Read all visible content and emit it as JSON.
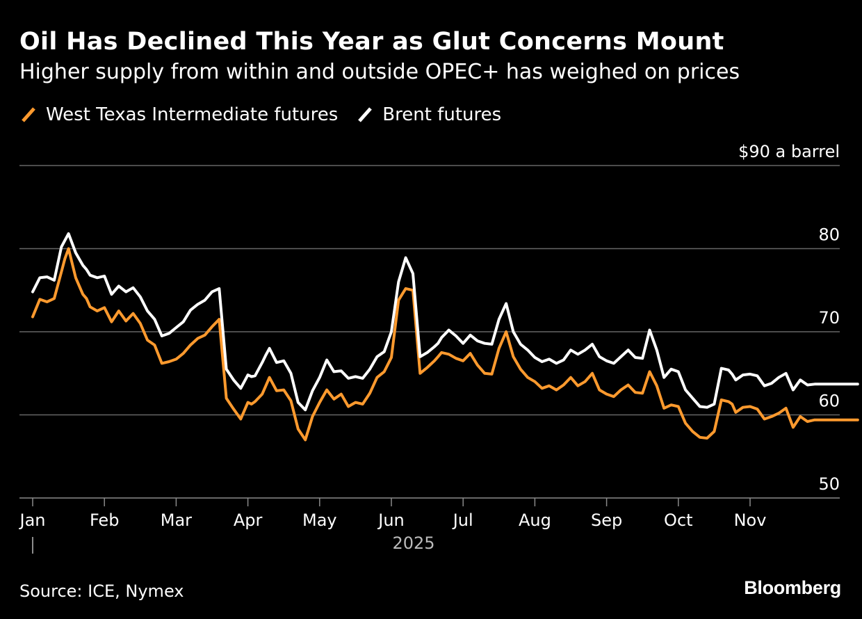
{
  "title": "Oil Has Declined This Year as Glut Concerns Mount",
  "subtitle": "Higher supply from within and outside OPEC+ has weighed on prices",
  "source": "Source: ICE, Nymex",
  "brand": "Bloomberg",
  "colors": {
    "background": "#000000",
    "wti": "#ff9a2e",
    "brent": "#ffffff",
    "grid": "#666666",
    "axis_text": "#ffffff",
    "year_text": "#bbbbbb"
  },
  "chart_data": {
    "type": "line",
    "title": "Oil Has Declined This Year as Glut Concerns Mount",
    "subtitle": "Higher supply from within and outside OPEC+ has weighed on prices",
    "xlabel": "2025",
    "ylabel": "$ a barrel",
    "ylim": [
      50,
      90
    ],
    "y_ticks": [
      50,
      60,
      70,
      80,
      90
    ],
    "y_tick_labels": [
      "50",
      "60",
      "70",
      "80",
      "$90 a barrel"
    ],
    "x_range": [
      0,
      11.6
    ],
    "months": [
      "Jan",
      "Feb",
      "Mar",
      "Apr",
      "May",
      "Jun",
      "Jul",
      "Aug",
      "Sep",
      "Oct",
      "Nov"
    ],
    "year_label": "2025",
    "legend": [
      "West Texas Intermediate futures",
      "Brent futures"
    ],
    "legend_position": "top-left",
    "grid": true,
    "series": [
      {
        "name": "West Texas Intermediate futures",
        "color": "#ff9a2e",
        "x": [
          0,
          0.1,
          0.2,
          0.3,
          0.4,
          0.45,
          0.5,
          0.6,
          0.7,
          0.75,
          0.8,
          0.9,
          1.0,
          1.1,
          1.2,
          1.3,
          1.4,
          1.5,
          1.6,
          1.7,
          1.8,
          1.9,
          2.0,
          2.1,
          2.2,
          2.3,
          2.4,
          2.5,
          2.6,
          2.7,
          2.8,
          2.9,
          3.0,
          3.05,
          3.1,
          3.2,
          3.25,
          3.3,
          3.4,
          3.5,
          3.6,
          3.7,
          3.8,
          3.9,
          4.0,
          4.1,
          4.2,
          4.3,
          4.4,
          4.5,
          4.6,
          4.7,
          4.8,
          4.9,
          5.0,
          5.1,
          5.2,
          5.3,
          5.4,
          5.5,
          5.6,
          5.65,
          5.7,
          5.8,
          5.9,
          6.0,
          6.1,
          6.2,
          6.3,
          6.4,
          6.5,
          6.6,
          6.7,
          6.8,
          6.9,
          7.0,
          7.1,
          7.2,
          7.3,
          7.4,
          7.5,
          7.6,
          7.7,
          7.8,
          7.9,
          8.0,
          8.1,
          8.2,
          8.3,
          8.4,
          8.5,
          8.6,
          8.7,
          8.8,
          8.9,
          9.0,
          9.1,
          9.2,
          9.3,
          9.4,
          9.5,
          9.6,
          9.7,
          9.75,
          9.8,
          9.9,
          10.0,
          10.1,
          10.2,
          10.3,
          10.4,
          10.5,
          10.6,
          10.7,
          10.8,
          10.9,
          11.0,
          11.1,
          11.2,
          11.3,
          11.4,
          11.5
        ],
        "values": [
          71.8,
          73.9,
          73.6,
          74.0,
          77.2,
          78.8,
          80.0,
          76.5,
          74.5,
          74.0,
          73.0,
          72.5,
          72.9,
          71.2,
          72.5,
          71.3,
          72.2,
          71.0,
          69.0,
          68.4,
          66.2,
          66.4,
          66.7,
          67.4,
          68.4,
          69.2,
          69.6,
          70.6,
          71.5,
          62.0,
          60.7,
          59.5,
          61.5,
          61.3,
          61.6,
          62.5,
          63.5,
          64.5,
          62.9,
          63.0,
          61.7,
          58.3,
          57.0,
          59.8,
          61.5,
          63.0,
          61.9,
          62.5,
          61.0,
          61.5,
          61.3,
          62.6,
          64.5,
          65.2,
          66.9,
          73.8,
          75.2,
          75.0,
          65.0,
          65.7,
          66.5,
          67.0,
          67.5,
          67.3,
          66.8,
          66.5,
          67.4,
          66.0,
          65.0,
          64.9,
          68.0,
          70.0,
          67.0,
          65.5,
          64.5,
          64.0,
          63.2,
          63.5,
          63.0,
          63.6,
          64.5,
          63.5,
          64.0,
          65.0,
          63.0,
          62.5,
          62.2,
          63.0,
          63.6,
          62.7,
          62.6,
          65.2,
          63.5,
          60.8,
          61.2,
          61.0,
          59.0,
          58.0,
          57.3,
          57.2,
          58.0,
          61.8,
          61.6,
          61.3,
          60.3,
          60.9,
          61.0,
          60.7,
          59.5,
          59.8,
          60.2,
          60.8,
          58.5,
          59.8,
          59.2,
          59.4,
          59.4,
          59.4,
          59.4,
          59.4,
          59.4,
          59.4
        ],
        "values_note": "sampled daily closes, approximate"
      },
      {
        "name": "Brent futures",
        "color": "#ffffff",
        "x": [
          0,
          0.1,
          0.2,
          0.3,
          0.4,
          0.45,
          0.5,
          0.6,
          0.7,
          0.75,
          0.8,
          0.9,
          1.0,
          1.1,
          1.2,
          1.3,
          1.4,
          1.5,
          1.6,
          1.7,
          1.8,
          1.9,
          2.0,
          2.1,
          2.2,
          2.3,
          2.4,
          2.5,
          2.6,
          2.7,
          2.8,
          2.9,
          3.0,
          3.05,
          3.1,
          3.2,
          3.25,
          3.3,
          3.4,
          3.5,
          3.6,
          3.7,
          3.8,
          3.9,
          4.0,
          4.1,
          4.2,
          4.3,
          4.4,
          4.5,
          4.6,
          4.7,
          4.8,
          4.9,
          5.0,
          5.1,
          5.2,
          5.3,
          5.4,
          5.5,
          5.6,
          5.65,
          5.7,
          5.8,
          5.9,
          6.0,
          6.1,
          6.2,
          6.3,
          6.4,
          6.5,
          6.6,
          6.7,
          6.8,
          6.9,
          7.0,
          7.1,
          7.2,
          7.3,
          7.4,
          7.5,
          7.6,
          7.7,
          7.8,
          7.9,
          8.0,
          8.1,
          8.2,
          8.3,
          8.4,
          8.5,
          8.6,
          8.7,
          8.8,
          8.9,
          9.0,
          9.1,
          9.2,
          9.3,
          9.4,
          9.5,
          9.6,
          9.7,
          9.75,
          9.8,
          9.9,
          10.0,
          10.1,
          10.2,
          10.3,
          10.4,
          10.5,
          10.6,
          10.7,
          10.8,
          10.9,
          11.0,
          11.1,
          11.2,
          11.3,
          11.4,
          11.5
        ],
        "values": [
          74.8,
          76.5,
          76.6,
          76.2,
          80.2,
          81.0,
          81.8,
          79.5,
          78.0,
          77.5,
          76.8,
          76.5,
          76.7,
          74.5,
          75.5,
          74.8,
          75.3,
          74.2,
          72.5,
          71.5,
          69.5,
          69.8,
          70.5,
          71.2,
          72.6,
          73.3,
          73.8,
          74.8,
          75.2,
          65.5,
          64.2,
          63.2,
          64.8,
          64.6,
          64.7,
          66.3,
          67.2,
          68.0,
          66.3,
          66.5,
          65.0,
          61.5,
          60.6,
          62.9,
          64.5,
          66.6,
          65.2,
          65.3,
          64.4,
          64.6,
          64.4,
          65.5,
          67.0,
          67.6,
          70.0,
          76.0,
          78.9,
          77.0,
          67.0,
          67.5,
          68.2,
          68.6,
          69.3,
          70.2,
          69.5,
          68.6,
          69.6,
          68.9,
          68.6,
          68.5,
          71.5,
          73.4,
          70.0,
          68.5,
          67.8,
          66.9,
          66.4,
          66.7,
          66.2,
          66.6,
          67.8,
          67.3,
          67.8,
          68.5,
          67.0,
          66.5,
          66.2,
          67.0,
          67.8,
          66.9,
          66.8,
          70.2,
          67.8,
          64.5,
          65.5,
          65.2,
          63.0,
          62.0,
          61.0,
          60.9,
          61.3,
          65.6,
          65.4,
          64.9,
          64.2,
          64.8,
          64.9,
          64.7,
          63.5,
          63.8,
          64.5,
          65.0,
          63.0,
          64.2,
          63.6,
          63.7,
          63.7,
          63.7,
          63.7,
          63.7,
          63.7,
          63.7
        ],
        "values_note": "sampled daily closes, approximate"
      }
    ]
  }
}
